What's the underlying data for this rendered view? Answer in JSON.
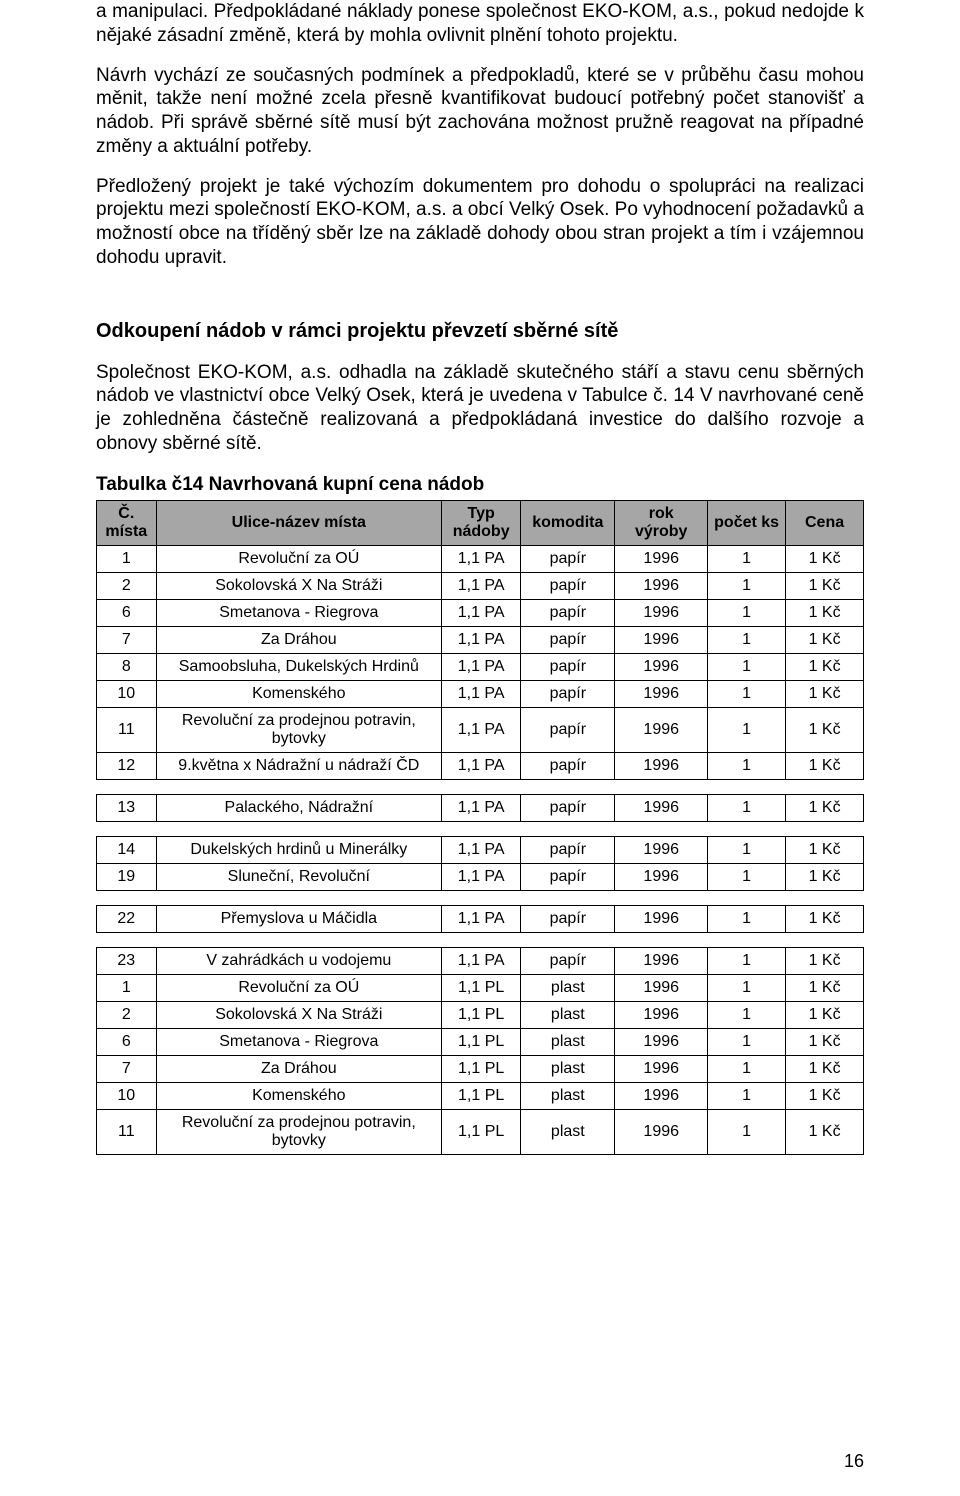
{
  "paragraphs": {
    "p1": "a manipulaci. Předpokládané náklady ponese společnost EKO-KOM, a.s., pokud nedojde k nějaké zásadní změně, která by mohla ovlivnit plnění tohoto projektu.",
    "p2": "Návrh vychází ze současných podmínek a předpokladů, které se v průběhu času mohou měnit, takže není možné zcela přesně kvantifikovat budoucí potřebný počet stanovišť a nádob. Při správě sběrné sítě musí být zachována možnost pružně reagovat na případné změny a aktuální potřeby.",
    "p3": "Předložený projekt je také výchozím dokumentem pro dohodu o spolupráci na realizaci projektu mezi společností EKO-KOM, a.s. a obcí Velký Osek. Po vyhodnocení požadavků a možností obce na tříděný sběr lze na základě dohody obou stran projekt a tím i vzájemnou dohodu upravit."
  },
  "section_title": "Odkoupení nádob v rámci projektu převzetí sběrné sítě",
  "section_para": "Společnost EKO-KOM, a.s. odhadla na základě skutečného stáří a stavu cenu sběrných nádob ve vlastnictví obce Velký Osek, která je uvedena v Tabulce č. 14 V navrhované ceně je zohledněna částečně realizovaná a předpokládaná investice do dalšího rozvoje a obnovy sběrné sítě.",
  "table_title": "Tabulka č14 Navrhovaná kupní cena nádob",
  "table": {
    "columns": [
      "Č. místa",
      "Ulice-název místa",
      "Typ nádoby",
      "komodita",
      "rok výroby",
      "počet ks",
      "Cena"
    ],
    "groups": [
      [
        {
          "num": "1",
          "name": "Revoluční za OÚ",
          "typ": "1,1 PA",
          "kom": "papír",
          "rok": "1996",
          "cnt": "1",
          "price": "1 Kč"
        },
        {
          "num": "2",
          "name": "Sokolovská X Na Stráži",
          "typ": "1,1 PA",
          "kom": "papír",
          "rok": "1996",
          "cnt": "1",
          "price": "1 Kč"
        },
        {
          "num": "6",
          "name": "Smetanova - Riegrova",
          "typ": "1,1 PA",
          "kom": "papír",
          "rok": "1996",
          "cnt": "1",
          "price": "1 Kč"
        },
        {
          "num": "7",
          "name": "Za Dráhou",
          "typ": "1,1 PA",
          "kom": "papír",
          "rok": "1996",
          "cnt": "1",
          "price": "1 Kč"
        },
        {
          "num": "8",
          "name": "Samoobsluha, Dukelských Hrdinů",
          "typ": "1,1 PA",
          "kom": "papír",
          "rok": "1996",
          "cnt": "1",
          "price": "1 Kč"
        },
        {
          "num": "10",
          "name": "Komenského",
          "typ": "1,1 PA",
          "kom": "papír",
          "rok": "1996",
          "cnt": "1",
          "price": "1 Kč"
        },
        {
          "num": "11",
          "name": "Revoluční za prodejnou potravin, bytovky",
          "typ": "1,1 PA",
          "kom": "papír",
          "rok": "1996",
          "cnt": "1",
          "price": "1 Kč"
        },
        {
          "num": "12",
          "name": "9.května x Nádražní u nádraží ČD",
          "typ": "1,1 PA",
          "kom": "papír",
          "rok": "1996",
          "cnt": "1",
          "price": "1 Kč"
        }
      ],
      [
        {
          "num": "13",
          "name": "Palackého, Nádražní",
          "typ": "1,1 PA",
          "kom": "papír",
          "rok": "1996",
          "cnt": "1",
          "price": "1 Kč"
        }
      ],
      [
        {
          "num": "14",
          "name": "Dukelských hrdinů u Minerálky",
          "typ": "1,1 PA",
          "kom": "papír",
          "rok": "1996",
          "cnt": "1",
          "price": "1 Kč"
        },
        {
          "num": "19",
          "name": "Sluneční, Revoluční",
          "typ": "1,1 PA",
          "kom": "papír",
          "rok": "1996",
          "cnt": "1",
          "price": "1 Kč"
        }
      ],
      [
        {
          "num": "22",
          "name": "Přemyslova u Máčidla",
          "typ": "1,1 PA",
          "kom": "papír",
          "rok": "1996",
          "cnt": "1",
          "price": "1 Kč"
        }
      ],
      [
        {
          "num": "23",
          "name": "V zahrádkách u vodojemu",
          "typ": "1,1 PA",
          "kom": "papír",
          "rok": "1996",
          "cnt": "1",
          "price": "1 Kč"
        },
        {
          "num": "1",
          "name": "Revoluční za OÚ",
          "typ": "1,1 PL",
          "kom": "plast",
          "rok": "1996",
          "cnt": "1",
          "price": "1 Kč"
        },
        {
          "num": "2",
          "name": "Sokolovská X Na Stráži",
          "typ": "1,1 PL",
          "kom": "plast",
          "rok": "1996",
          "cnt": "1",
          "price": "1 Kč"
        },
        {
          "num": "6",
          "name": "Smetanova - Riegrova",
          "typ": "1,1 PL",
          "kom": "plast",
          "rok": "1996",
          "cnt": "1",
          "price": "1 Kč"
        },
        {
          "num": "7",
          "name": "Za Dráhou",
          "typ": "1,1 PL",
          "kom": "plast",
          "rok": "1996",
          "cnt": "1",
          "price": "1 Kč"
        },
        {
          "num": "10",
          "name": "Komenského",
          "typ": "1,1 PL",
          "kom": "plast",
          "rok": "1996",
          "cnt": "1",
          "price": "1 Kč"
        },
        {
          "num": "11",
          "name": "Revoluční za prodejnou potravin, bytovky",
          "typ": "1,1 PL",
          "kom": "plast",
          "rok": "1996",
          "cnt": "1",
          "price": "1 Kč"
        }
      ]
    ]
  },
  "page_number": "16"
}
